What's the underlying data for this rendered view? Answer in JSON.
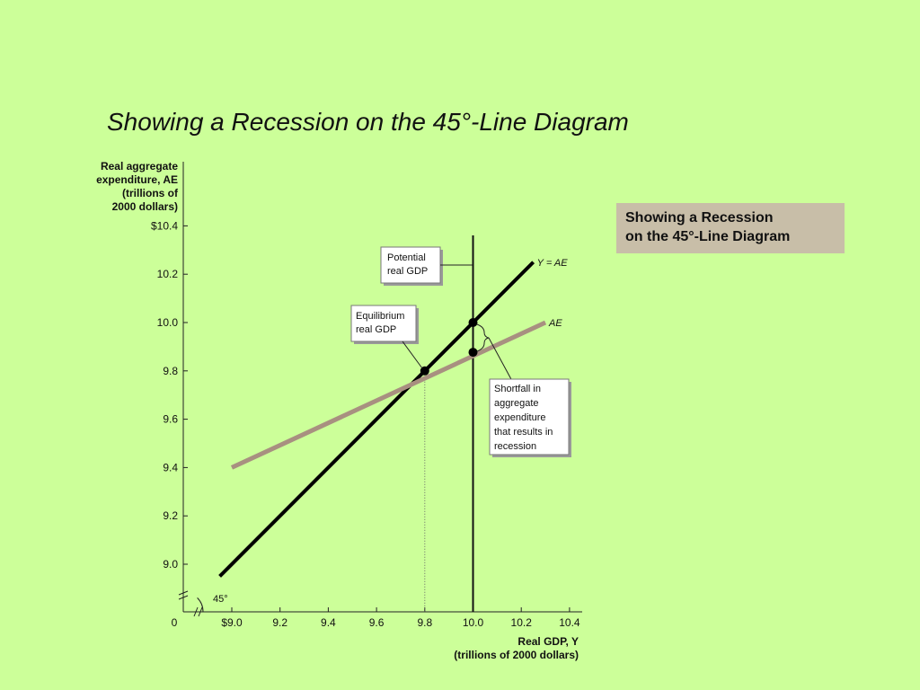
{
  "slide": {
    "title": "Showing a Recession on the 45°-Line Diagram",
    "caption_line1": "Showing a Recession",
    "caption_line2": "on the 45°-Line Diagram",
    "background_color": "#ccff99",
    "caption_background": "#c8bea8"
  },
  "chart_data": {
    "type": "line",
    "ylabel_lines": [
      "Real aggregate",
      "expenditure, AE",
      "(trillions of",
      "2000 dollars)"
    ],
    "xlabel_lines": [
      "Real GDP, Y",
      "(trillions of 2000 dollars)"
    ],
    "xlim": [
      9.0,
      10.4
    ],
    "ylim": [
      9.0,
      10.4
    ],
    "x_ticks": [
      "0",
      "$9.0",
      "9.2",
      "9.4",
      "9.6",
      "9.8",
      "10.0",
      "10.2",
      "10.4"
    ],
    "y_ticks": [
      "$10.4",
      "10.2",
      "10.0",
      "9.8",
      "9.6",
      "9.4",
      "9.2",
      "9.0"
    ],
    "axis_break": true,
    "series": [
      {
        "name": "Y = AE",
        "color": "#000000",
        "x": [
          8.95,
          10.25
        ],
        "y": [
          8.95,
          10.25
        ]
      },
      {
        "name": "AE",
        "color": "#a89080",
        "x": [
          9.0,
          10.3
        ],
        "y": [
          9.4,
          10.0
        ]
      }
    ],
    "points": [
      {
        "x": 9.8,
        "y": 9.8
      },
      {
        "x": 10.0,
        "y": 10.0
      },
      {
        "x": 10.0,
        "y": 9.877
      }
    ],
    "potential_gdp_x": 10.0,
    "equilibrium_x": 9.8,
    "angle_label": "45°",
    "annotations": {
      "potential": [
        "Potential",
        "real GDP"
      ],
      "equilibrium": [
        "Equilibrium",
        "real GDP"
      ],
      "shortfall": [
        "Shortfall in",
        "aggregate",
        "expenditure",
        "that results in",
        "recession"
      ]
    }
  }
}
